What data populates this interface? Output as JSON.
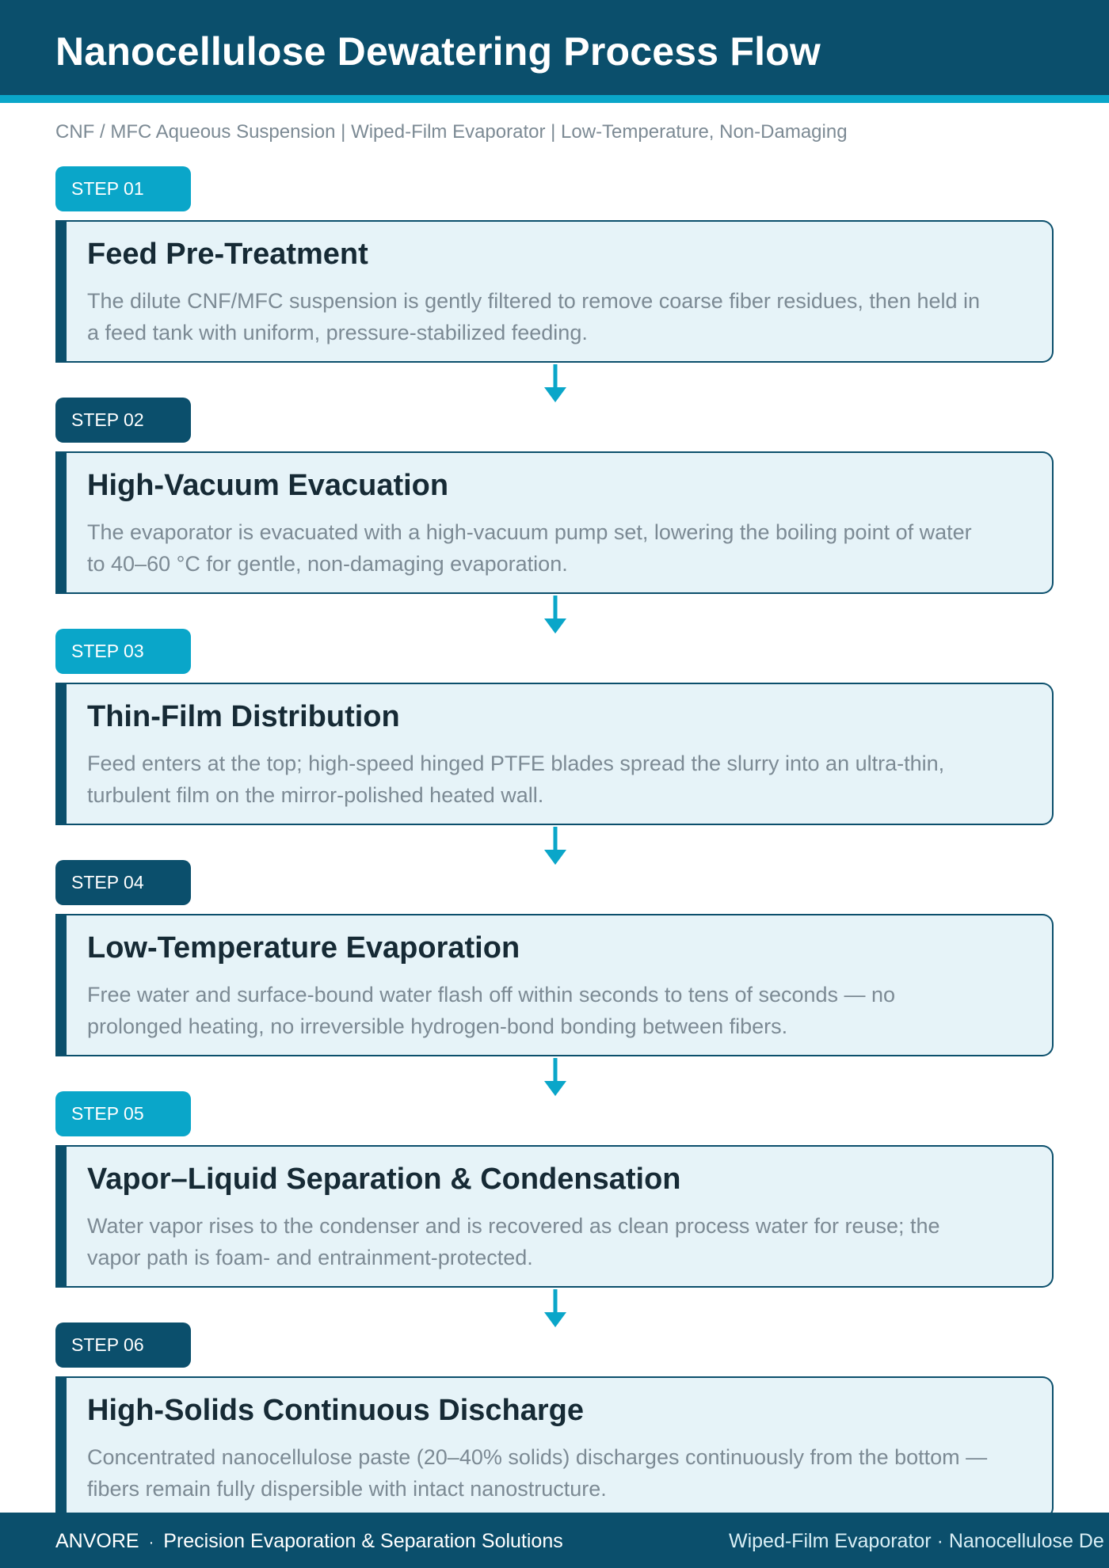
{
  "header": {
    "title": "Nanocellulose Dewatering Process Flow",
    "subtitle": "CNF / MFC Aqueous Suspension | Wiped-Film Evaporator | Low-Temperature, Non-Damaging"
  },
  "colors": {
    "primary_dark": "#0b4f6c",
    "accent_cyan": "#0aa6c9",
    "card_bg": "#e6f3f8",
    "body_text": "#7c8a94",
    "heading_text": "#162a35"
  },
  "steps": [
    {
      "badge": "STEP 01",
      "title": "Feed Pre-Treatment",
      "description": "The dilute CNF/MFC suspension is gently filtered to remove coarse fiber residues, then held in a feed tank with uniform, pressure-stabilized feeding."
    },
    {
      "badge": "STEP 02",
      "title": "High-Vacuum Evacuation",
      "description": "The evaporator is evacuated with a high-vacuum pump set, lowering the boiling point of water to 40–60 °C for gentle, non-damaging evaporation."
    },
    {
      "badge": "STEP 03",
      "title": "Thin-Film Distribution",
      "description": "Feed enters at the top; high-speed hinged PTFE blades spread the slurry into an ultra-thin, turbulent film on the mirror-polished heated wall."
    },
    {
      "badge": "STEP 04",
      "title": "Low-Temperature Evaporation",
      "description": "Free water and surface-bound water flash off within seconds to tens of seconds — no prolonged heating, no irreversible hydrogen-bond bonding between fibers."
    },
    {
      "badge": "STEP 05",
      "title": "Vapor–Liquid Separation & Condensation",
      "description": "Water vapor rises to the condenser and is recovered as clean process water for reuse; the vapor path is foam- and entrainment-protected."
    },
    {
      "badge": "STEP 06",
      "title": "High-Solids Continuous Discharge",
      "description": "Concentrated nanocellulose paste (20–40% solids) discharges continuously from the bottom — fibers remain fully dispersible with intact nanostructure."
    }
  ],
  "footer": {
    "brand": "ANVORE",
    "separator": "·",
    "tagline": "Precision Evaporation & Separation Solutions",
    "right_text": "Wiped-Film Evaporator · Nanocellulose De"
  }
}
